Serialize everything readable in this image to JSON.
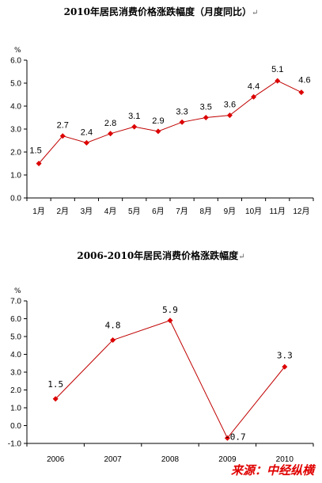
{
  "chart_data": [
    {
      "type": "line",
      "title": "2010年居民消费价格涨跌幅度（月度同比）",
      "unit_label": "%",
      "categories": [
        "1月",
        "2月",
        "3月",
        "4月",
        "5月",
        "6月",
        "7月",
        "8月",
        "9月",
        "10月",
        "11月",
        "12月"
      ],
      "values": [
        1.5,
        2.7,
        2.4,
        2.8,
        3.1,
        2.9,
        3.3,
        3.5,
        3.6,
        4.4,
        5.1,
        4.6
      ],
      "ylim": [
        0,
        6
      ],
      "yticks": [
        "0.0",
        "1.0",
        "2.0",
        "3.0",
        "4.0",
        "5.0",
        "6.0"
      ],
      "color": "#c00000",
      "grid": false
    },
    {
      "type": "line",
      "title": "2006-2010年居民消费价格涨跌幅度",
      "unit_label": "%",
      "categories": [
        "2006",
        "2007",
        "2008",
        "2009",
        "2010"
      ],
      "values": [
        1.5,
        4.8,
        5.9,
        -0.7,
        3.3
      ],
      "ylim": [
        -1,
        7
      ],
      "yticks": [
        "-1.0",
        "0.0",
        "1.0",
        "2.0",
        "3.0",
        "4.0",
        "5.0",
        "6.0",
        "7.0"
      ],
      "color": "#c00000",
      "grid": false
    }
  ],
  "source": "来源：中经纵横"
}
